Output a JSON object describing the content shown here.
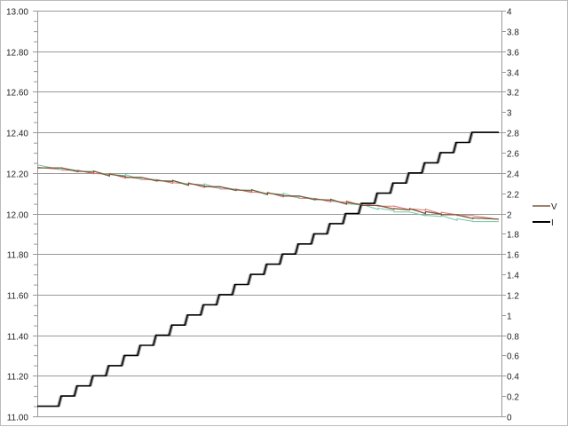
{
  "chart_data": {
    "type": "line",
    "title": "",
    "xlabel": "",
    "ylabel": "",
    "y_left": {
      "range": [
        11.0,
        13.0
      ],
      "ticks": [
        "11.00",
        "11.20",
        "11.40",
        "11.60",
        "11.80",
        "12.00",
        "12.20",
        "12.40",
        "12.60",
        "12.80",
        "13.00"
      ]
    },
    "y_right": {
      "range": [
        0,
        4
      ],
      "ticks": [
        "0",
        "0.2",
        "0.4",
        "0.6",
        "0.8",
        "1",
        "1.2",
        "1.4",
        "1.6",
        "1.8",
        "2",
        "2.2",
        "2.4",
        "2.6",
        "2.8",
        "3",
        "3.2",
        "3.4",
        "3.6",
        "3.8",
        "4"
      ]
    },
    "grid": true,
    "legend": {
      "placement": "right",
      "entries": [
        {
          "label": "V",
          "color": "#7a5a3a"
        },
        {
          "label": "I",
          "color": "#000000"
        }
      ]
    },
    "series": [
      {
        "name": "V",
        "axis": "left",
        "color": "#7a5a3a",
        "values": [
          12.225,
          12.215,
          12.206,
          12.197,
          12.188,
          12.178,
          12.169,
          12.16,
          12.151,
          12.142,
          12.132,
          12.123,
          12.114,
          12.105,
          12.095,
          12.086,
          12.077,
          12.068,
          12.058,
          12.049,
          12.04,
          12.031,
          12.021,
          12.012,
          12.003,
          11.994,
          11.984,
          11.975
        ]
      },
      {
        "axis": "left",
        "color": "#e07070",
        "values": [
          12.222,
          12.213,
          12.204,
          12.195,
          12.186,
          12.176,
          12.167,
          12.158,
          12.149,
          12.14,
          12.13,
          12.121,
          12.112,
          12.103,
          12.093,
          12.084,
          12.075,
          12.066,
          12.058,
          12.05,
          12.043,
          12.036,
          12.028,
          12.02,
          12.01,
          12.0,
          11.99,
          11.98
        ]
      },
      {
        "axis": "left",
        "color": "#70c8a8",
        "values": [
          12.228,
          12.218,
          12.208,
          12.199,
          12.19,
          12.18,
          12.171,
          12.162,
          12.153,
          12.144,
          12.134,
          12.125,
          12.116,
          12.107,
          12.097,
          12.088,
          12.079,
          12.068,
          12.056,
          12.045,
          12.032,
          12.02,
          12.008,
          11.998,
          11.988,
          11.978,
          11.968,
          11.96
        ]
      },
      {
        "name": "I",
        "axis": "right",
        "color": "#000000",
        "style": "step",
        "values": [
          0.1,
          0.2,
          0.3,
          0.4,
          0.5,
          0.6,
          0.7,
          0.8,
          0.9,
          1.0,
          1.1,
          1.2,
          1.3,
          1.4,
          1.5,
          1.6,
          1.7,
          1.8,
          1.9,
          2.0,
          2.1,
          2.2,
          2.3,
          2.4,
          2.5,
          2.6,
          2.7,
          2.8
        ]
      }
    ]
  }
}
